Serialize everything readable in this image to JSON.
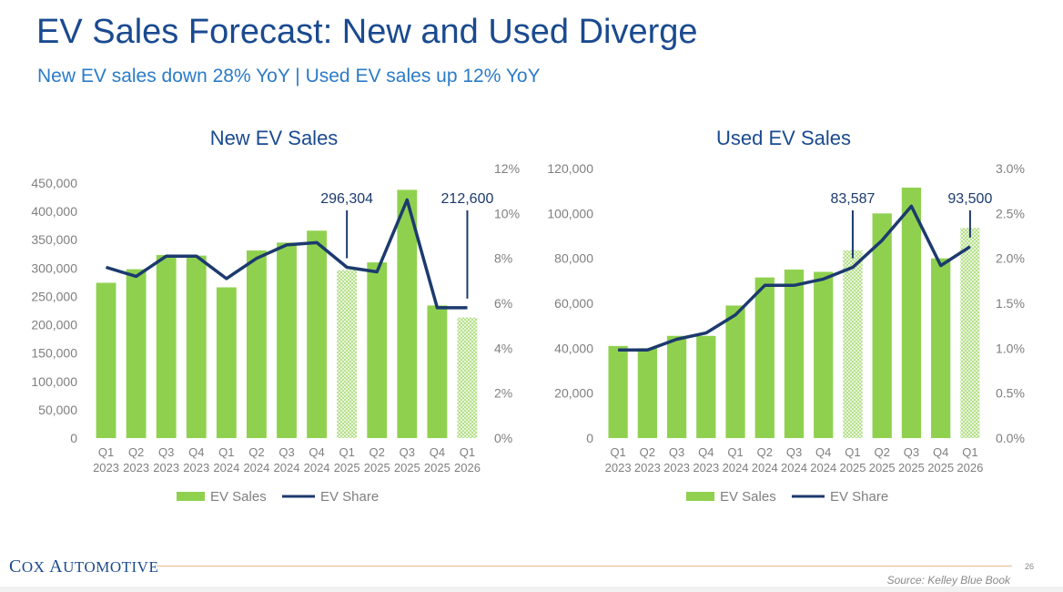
{
  "title": "EV Sales Forecast: New and Used Diverge",
  "subtitle": "New EV sales down 28% YoY | Used EV sales up 12% YoY",
  "colors": {
    "title": "#1a4a8f",
    "subtitle": "#2b7bc8",
    "bar": "#8fd14f",
    "line": "#1c3a6e",
    "axis_text": "#7f7f7f",
    "callout": "#1c3a6e"
  },
  "footer": {
    "brand_first": "C",
    "brand_rest1": "OX ",
    "brand_second": "A",
    "brand_rest2": "UTOMOTIVE",
    "page_number": "26",
    "source": "Source: Kelley Blue Book"
  },
  "chart_data": [
    {
      "id": "new",
      "type": "bar",
      "title": "New EV Sales",
      "categories": [
        [
          "Q1",
          "2023"
        ],
        [
          "Q2",
          "2023"
        ],
        [
          "Q3",
          "2023"
        ],
        [
          "Q4",
          "2023"
        ],
        [
          "Q1",
          "2024"
        ],
        [
          "Q2",
          "2024"
        ],
        [
          "Q3",
          "2024"
        ],
        [
          "Q4",
          "2024"
        ],
        [
          "Q1",
          "2025"
        ],
        [
          "Q2",
          "2025"
        ],
        [
          "Q3",
          "2025"
        ],
        [
          "Q4",
          "2025"
        ],
        [
          "Q1",
          "2026"
        ]
      ],
      "series": [
        {
          "name": "EV Sales",
          "kind": "bar",
          "axis": "left",
          "values": [
            274000,
            298000,
            323000,
            322000,
            266000,
            331000,
            345000,
            366000,
            296304,
            310000,
            438000,
            234000,
            212600
          ],
          "hatched": [
            false,
            false,
            false,
            false,
            false,
            false,
            false,
            false,
            true,
            false,
            false,
            false,
            true
          ]
        },
        {
          "name": "EV Share",
          "kind": "line",
          "axis": "right",
          "values": [
            7.6,
            7.2,
            8.1,
            8.1,
            7.1,
            8.0,
            8.6,
            8.7,
            7.6,
            7.4,
            10.6,
            5.8,
            5.8
          ]
        }
      ],
      "y_left": {
        "min": 0,
        "max": 450000,
        "ticks": [
          "0",
          "50,000",
          "100,000",
          "150,000",
          "200,000",
          "250,000",
          "300,000",
          "350,000",
          "400,000",
          "450,000"
        ],
        "step": 50000
      },
      "y_right": {
        "min": 0,
        "max": 12,
        "ticks": [
          "0%",
          "2%",
          "4%",
          "6%",
          "8%",
          "10%",
          "12%"
        ],
        "step": 2
      },
      "callouts": [
        {
          "index": 8,
          "label": "296,304",
          "value_at": 7.6,
          "axis": "right"
        },
        {
          "index": 12,
          "label": "212,600",
          "value_at": 5.8,
          "axis": "right"
        }
      ],
      "legend": [
        "EV Sales",
        "EV Share"
      ]
    },
    {
      "id": "used",
      "type": "bar",
      "title": "Used EV Sales",
      "categories": [
        [
          "Q1",
          "2023"
        ],
        [
          "Q2",
          "2023"
        ],
        [
          "Q3",
          "2023"
        ],
        [
          "Q4",
          "2023"
        ],
        [
          "Q1",
          "2024"
        ],
        [
          "Q2",
          "2024"
        ],
        [
          "Q3",
          "2024"
        ],
        [
          "Q4",
          "2024"
        ],
        [
          "Q1",
          "2025"
        ],
        [
          "Q2",
          "2025"
        ],
        [
          "Q3",
          "2025"
        ],
        [
          "Q4",
          "2025"
        ],
        [
          "Q1",
          "2026"
        ]
      ],
      "series": [
        {
          "name": "EV Sales",
          "kind": "bar",
          "axis": "left",
          "values": [
            41000,
            40000,
            45500,
            45500,
            59000,
            71500,
            75000,
            74000,
            83587,
            100000,
            111500,
            80000,
            93500
          ],
          "hatched": [
            false,
            false,
            false,
            false,
            false,
            false,
            false,
            false,
            true,
            false,
            false,
            false,
            true
          ]
        },
        {
          "name": "EV Share",
          "kind": "line",
          "axis": "right",
          "values": [
            0.98,
            0.98,
            1.1,
            1.17,
            1.37,
            1.7,
            1.7,
            1.77,
            1.9,
            2.2,
            2.58,
            1.92,
            2.13
          ]
        }
      ],
      "y_left": {
        "min": 0,
        "max": 120000,
        "ticks": [
          "0",
          "20,000",
          "40,000",
          "60,000",
          "80,000",
          "100,000",
          "120,000"
        ],
        "step": 20000
      },
      "y_right": {
        "min": 0,
        "max": 3.0,
        "ticks": [
          "0.0%",
          "0.5%",
          "1.0%",
          "1.5%",
          "2.0%",
          "2.5%",
          "3.0%"
        ],
        "step": 0.5
      },
      "callouts": [
        {
          "index": 8,
          "label": "83,587",
          "value_at": 1.9,
          "axis": "right"
        },
        {
          "index": 12,
          "label": "93,500",
          "value_at": 2.13,
          "axis": "right"
        }
      ],
      "legend": [
        "EV Sales",
        "EV Share"
      ]
    }
  ]
}
